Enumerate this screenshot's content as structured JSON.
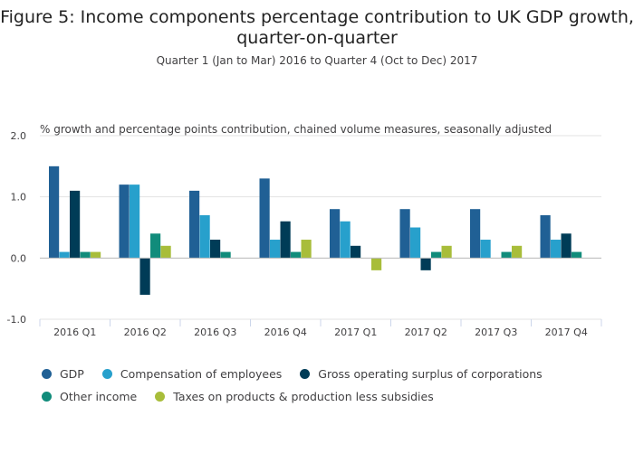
{
  "chart_data": {
    "type": "bar",
    "title": "Figure 5: Income components percentage contribution to UK GDP growth, quarter-on-quarter",
    "subtitle": "Quarter 1 (Jan to Mar) 2016 to Quarter 4 (Oct to Dec) 2017",
    "ylabel": "% growth and percentage points contribution, chained volume measures, seasonally adjusted",
    "xlabel": "",
    "ylim": [
      -1.0,
      2.0
    ],
    "yticks": [
      "2.0",
      "1.0",
      "0.0",
      "-1.0"
    ],
    "ytick_values": [
      2.0,
      1.0,
      0.0,
      -1.0
    ],
    "categories": [
      "2016 Q1",
      "2016 Q2",
      "2016 Q3",
      "2016 Q4",
      "2017 Q1",
      "2017 Q2",
      "2017 Q3",
      "2017 Q4"
    ],
    "legend_position": "bottom",
    "series": [
      {
        "name": "GDP",
        "color": "#206095",
        "values": [
          1.5,
          1.2,
          1.1,
          1.3,
          0.8,
          0.8,
          0.8,
          0.7
        ]
      },
      {
        "name": "Compensation of employees",
        "color": "#27a0cc",
        "values": [
          0.1,
          1.2,
          0.7,
          0.3,
          0.6,
          0.5,
          0.3,
          0.3
        ]
      },
      {
        "name": "Gross operating surplus of corporations",
        "color": "#003c57",
        "values": [
          1.1,
          -0.6,
          0.3,
          0.6,
          0.2,
          -0.2,
          0.0,
          0.4
        ]
      },
      {
        "name": "Other income",
        "color": "#118c7b",
        "values": [
          0.1,
          0.4,
          0.1,
          0.1,
          0.0,
          0.1,
          0.1,
          0.1
        ]
      },
      {
        "name": "Taxes on products & production less subsidies",
        "color": "#a8bd3a",
        "values": [
          0.1,
          0.2,
          0.0,
          0.3,
          -0.2,
          0.2,
          0.2,
          0.0
        ]
      }
    ]
  }
}
